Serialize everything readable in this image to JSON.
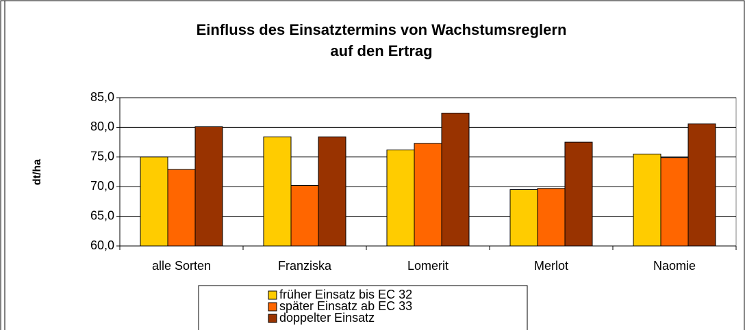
{
  "chart_data": {
    "type": "bar",
    "title": "Einfluss des Einsatztermins von Wachstumsreglern",
    "subtitle": "auf den Ertrag",
    "y_label": "dt/ha",
    "categories": [
      "alle Sorten",
      "Franziska",
      "Lomerit",
      "Merlot",
      "Naomie"
    ],
    "series": [
      {
        "name": "früher Einsatz bis EC 32",
        "color": "#ffcc00",
        "values": [
          75.0,
          78.4,
          76.2,
          69.5,
          75.5
        ]
      },
      {
        "name": "später Einsatz ab EC 33",
        "color": "#ff6600",
        "values": [
          72.9,
          70.2,
          77.3,
          69.7,
          74.9
        ]
      },
      {
        "name": "doppelter Einsatz",
        "color": "#993300",
        "values": [
          80.1,
          78.4,
          82.4,
          77.5,
          80.6
        ]
      }
    ],
    "ylim": [
      60,
      85
    ],
    "yticks": [
      {
        "value": 60,
        "label": "60,0"
      },
      {
        "value": 65,
        "label": "65,0"
      },
      {
        "value": 70,
        "label": "70,0"
      },
      {
        "value": 75,
        "label": "75,0"
      },
      {
        "value": 80,
        "label": "80,0"
      },
      {
        "value": 85,
        "label": "85,0"
      }
    ],
    "grid": true,
    "legend": "bottom"
  }
}
